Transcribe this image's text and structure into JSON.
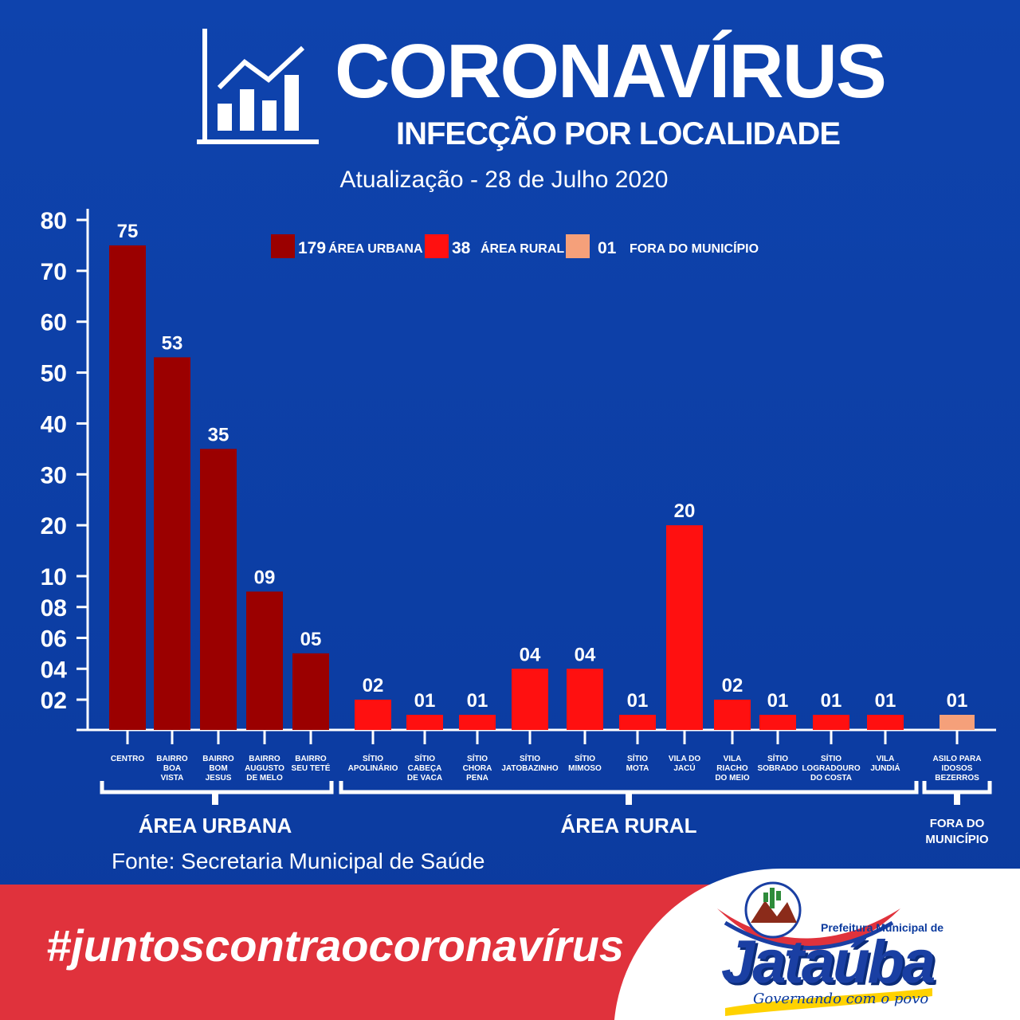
{
  "header": {
    "title": "CORONAVÍRUS",
    "subtitle": "INFECÇÃO POR LOCALIDADE",
    "update": "Atualização - 28 de Julho 2020",
    "icon": "chart-growth-icon"
  },
  "colors": {
    "background": "#0d3fa6",
    "urban": "#9b0000",
    "rural": "#ff1010",
    "outside": "#f5a07a",
    "footer_red": "#e0323c"
  },
  "legend": [
    {
      "count": "179",
      "label": "ÁREA URBANA",
      "group": "urban"
    },
    {
      "count": "38",
      "label": "ÁREA RURAL",
      "group": "rural"
    },
    {
      "count": "01",
      "label": "FORA DO MUNICÍPIO",
      "group": "outside"
    }
  ],
  "chart_data": {
    "type": "bar",
    "y_ticks": [
      "80",
      "70",
      "60",
      "50",
      "40",
      "30",
      "20",
      "10",
      "08",
      "06",
      "04",
      "02"
    ],
    "bars": [
      {
        "label": [
          "CENTRO"
        ],
        "value": 75,
        "value_label": "75",
        "group": "urban"
      },
      {
        "label": [
          "BAIRRO",
          "BOA",
          "VISTA"
        ],
        "value": 53,
        "value_label": "53",
        "group": "urban"
      },
      {
        "label": [
          "BAIRRO",
          "BOM",
          "JESUS"
        ],
        "value": 35,
        "value_label": "35",
        "group": "urban"
      },
      {
        "label": [
          "BAIRRO",
          "AUGUSTO",
          "DE MELO"
        ],
        "value": 9,
        "value_label": "09",
        "group": "urban"
      },
      {
        "label": [
          "BAIRRO",
          "SEU TETÉ"
        ],
        "value": 5,
        "value_label": "05",
        "group": "urban"
      },
      {
        "label": [
          "SÍTIO",
          "APOLINÁRIO"
        ],
        "value": 2,
        "value_label": "02",
        "group": "rural"
      },
      {
        "label": [
          "SÍTIO",
          "CABEÇA",
          "DE VACA"
        ],
        "value": 1,
        "value_label": "01",
        "group": "rural"
      },
      {
        "label": [
          "SÍTIO",
          "CHORA",
          "PENA"
        ],
        "value": 1,
        "value_label": "01",
        "group": "rural"
      },
      {
        "label": [
          "SÍTIO",
          "JATOBAZINHO"
        ],
        "value": 4,
        "value_label": "04",
        "group": "rural"
      },
      {
        "label": [
          "SÍTIO",
          "MIMOSO"
        ],
        "value": 4,
        "value_label": "04",
        "group": "rural"
      },
      {
        "label": [
          "SÍTIO",
          "MOTA"
        ],
        "value": 1,
        "value_label": "01",
        "group": "rural"
      },
      {
        "label": [
          "VILA DO",
          "JACÚ"
        ],
        "value": 20,
        "value_label": "20",
        "group": "rural"
      },
      {
        "label": [
          "VILA",
          "RIACHO",
          "DO MEIO"
        ],
        "value": 2,
        "value_label": "02",
        "group": "rural"
      },
      {
        "label": [
          "SÍTIO",
          "SOBRADO"
        ],
        "value": 1,
        "value_label": "01",
        "group": "rural"
      },
      {
        "label": [
          "SÍTIO",
          "LOGRADOURO",
          "DO COSTA"
        ],
        "value": 1,
        "value_label": "01",
        "group": "rural"
      },
      {
        "label": [
          "VILA",
          "JUNDIÁ"
        ],
        "value": 1,
        "value_label": "01",
        "group": "rural"
      },
      {
        "label": [
          "ASILO PARA",
          "IDOSOS",
          "BEZERROS"
        ],
        "value": 1,
        "value_label": "01",
        "group": "outside"
      }
    ],
    "groups": [
      {
        "key": "urban",
        "label": [
          "ÁREA URBANA"
        ]
      },
      {
        "key": "rural",
        "label": [
          "ÁREA RURAL"
        ]
      },
      {
        "key": "outside",
        "label": [
          "FORA DO",
          "MUNICÍPIO"
        ]
      }
    ]
  },
  "source": "Fonte: Secretaria Municipal de Saúde",
  "footer": {
    "hashtag": "#juntoscontraocoronavírus",
    "logo_prefeitura": "Prefeitura Municipal de",
    "logo_name": "Jataúba",
    "logo_slogan": "Governando com o povo"
  }
}
